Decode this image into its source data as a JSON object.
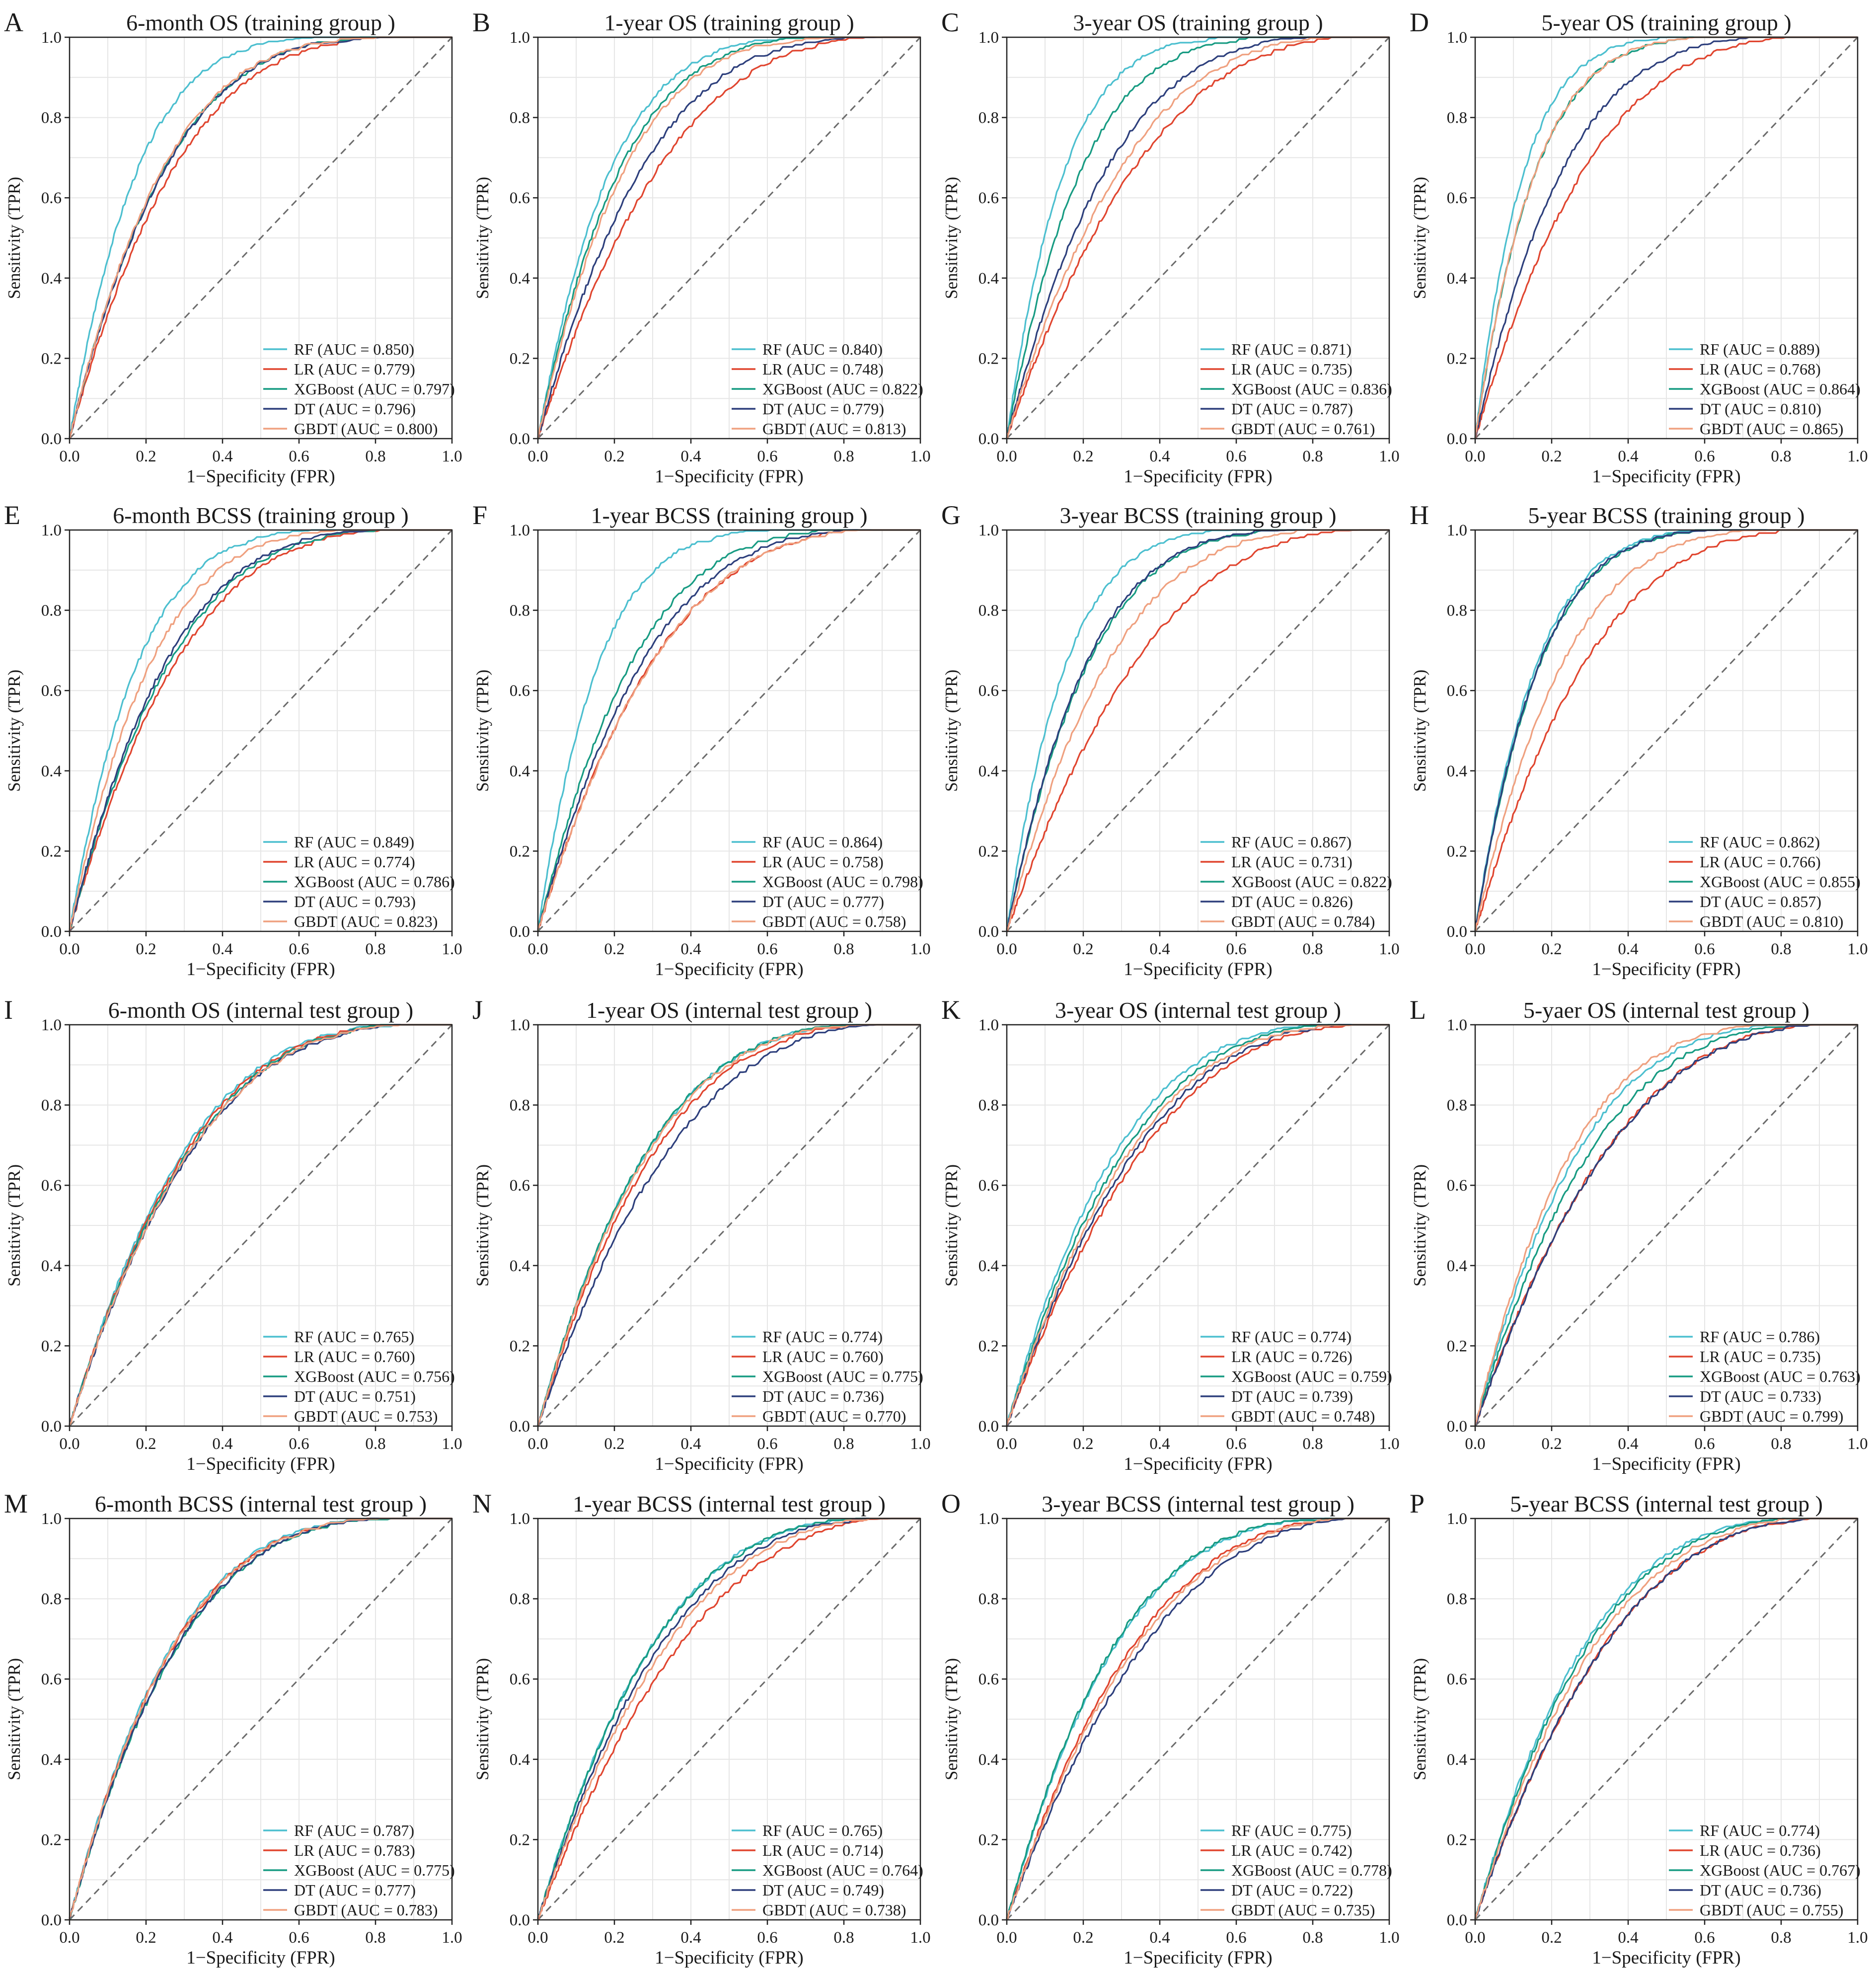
{
  "colors": {
    "RF": "#4cbfcf",
    "LR": "#e0452f",
    "XGBoost": "#179b82",
    "DT": "#2d3f7c",
    "GBDT": "#efa07f",
    "diagonal": "#6b6b6b",
    "grid": "#e6e6e6",
    "frame": "#222222"
  },
  "chart_data": [
    {
      "letter": "A",
      "type": "line",
      "title": "6-month OS (training group )",
      "xlabel": "1−Specificity (FPR)",
      "ylabel": "Sensitivity (TPR)",
      "xlim": [
        0,
        1
      ],
      "ylim": [
        0,
        1
      ],
      "ticks": [
        "0.0",
        "0.2",
        "0.4",
        "0.6",
        "0.8",
        "1.0"
      ],
      "grid": true,
      "legend": "bottom-right",
      "series": [
        {
          "name": "RF",
          "legend": "RF (AUC = 0.850)",
          "auc": 0.85
        },
        {
          "name": "LR",
          "legend": "LR (AUC = 0.779)",
          "auc": 0.779
        },
        {
          "name": "XGBoost",
          "legend": "XGBoost (AUC = 0.797)",
          "auc": 0.797
        },
        {
          "name": "DT",
          "legend": "DT (AUC = 0.796)",
          "auc": 0.796
        },
        {
          "name": "GBDT",
          "legend": "GBDT (AUC = 0.800)",
          "auc": 0.8
        }
      ]
    },
    {
      "letter": "B",
      "type": "line",
      "title": "1-year OS (training group )",
      "xlabel": "1−Specificity (FPR)",
      "ylabel": "Sensitivity (TPR)",
      "xlim": [
        0,
        1
      ],
      "ylim": [
        0,
        1
      ],
      "ticks": [
        "0.0",
        "0.2",
        "0.4",
        "0.6",
        "0.8",
        "1.0"
      ],
      "grid": true,
      "legend": "bottom-right",
      "series": [
        {
          "name": "RF",
          "legend": "RF (AUC = 0.840)",
          "auc": 0.84
        },
        {
          "name": "LR",
          "legend": "LR (AUC = 0.748)",
          "auc": 0.748
        },
        {
          "name": "XGBoost",
          "legend": "XGBoost (AUC = 0.822)",
          "auc": 0.822
        },
        {
          "name": "DT",
          "legend": "DT (AUC = 0.779)",
          "auc": 0.779
        },
        {
          "name": "GBDT",
          "legend": "GBDT (AUC = 0.813)",
          "auc": 0.813
        }
      ]
    },
    {
      "letter": "C",
      "type": "line",
      "title": "3-year OS (training group )",
      "xlabel": "1−Specificity (FPR)",
      "ylabel": "Sensitivity (TPR)",
      "xlim": [
        0,
        1
      ],
      "ylim": [
        0,
        1
      ],
      "ticks": [
        "0.0",
        "0.2",
        "0.4",
        "0.6",
        "0.8",
        "1.0"
      ],
      "grid": true,
      "legend": "bottom-right",
      "series": [
        {
          "name": "RF",
          "legend": "RF (AUC = 0.871)",
          "auc": 0.871
        },
        {
          "name": "LR",
          "legend": "LR (AUC = 0.735)",
          "auc": 0.735
        },
        {
          "name": "XGBoost",
          "legend": "XGBoost (AUC = 0.836)",
          "auc": 0.836
        },
        {
          "name": "DT",
          "legend": "DT (AUC = 0.787)",
          "auc": 0.787
        },
        {
          "name": "GBDT",
          "legend": "GBDT (AUC = 0.761)",
          "auc": 0.761
        }
      ]
    },
    {
      "letter": "D",
      "type": "line",
      "title": "5-year OS (training group )",
      "xlabel": "1−Specificity (FPR)",
      "ylabel": "Sensitivity (TPR)",
      "xlim": [
        0,
        1
      ],
      "ylim": [
        0,
        1
      ],
      "ticks": [
        "0.0",
        "0.2",
        "0.4",
        "0.6",
        "0.8",
        "1.0"
      ],
      "grid": true,
      "legend": "bottom-right",
      "series": [
        {
          "name": "RF",
          "legend": "RF (AUC = 0.889)",
          "auc": 0.889
        },
        {
          "name": "LR",
          "legend": "LR (AUC = 0.768)",
          "auc": 0.768
        },
        {
          "name": "XGBoost",
          "legend": "XGBoost (AUC = 0.864)",
          "auc": 0.864
        },
        {
          "name": "DT",
          "legend": "DT (AUC = 0.810)",
          "auc": 0.81
        },
        {
          "name": "GBDT",
          "legend": "GBDT (AUC = 0.865)",
          "auc": 0.865
        }
      ]
    },
    {
      "letter": "E",
      "type": "line",
      "title": "6-month BCSS (training group )",
      "xlabel": "1−Specificity (FPR)",
      "ylabel": "Sensitivity (TPR)",
      "xlim": [
        0,
        1
      ],
      "ylim": [
        0,
        1
      ],
      "ticks": [
        "0.0",
        "0.2",
        "0.4",
        "0.6",
        "0.8",
        "1.0"
      ],
      "grid": true,
      "legend": "bottom-right",
      "series": [
        {
          "name": "RF",
          "legend": "RF (AUC = 0.849)",
          "auc": 0.849
        },
        {
          "name": "LR",
          "legend": "LR (AUC = 0.774)",
          "auc": 0.774
        },
        {
          "name": "XGBoost",
          "legend": "XGBoost (AUC = 0.786)",
          "auc": 0.786
        },
        {
          "name": "DT",
          "legend": "DT (AUC = 0.793)",
          "auc": 0.793
        },
        {
          "name": "GBDT",
          "legend": "GBDT (AUC = 0.823)",
          "auc": 0.823
        }
      ]
    },
    {
      "letter": "F",
      "type": "line",
      "title": "1-year BCSS (training group )",
      "xlabel": "1−Specificity (FPR)",
      "ylabel": "Sensitivity (TPR)",
      "xlim": [
        0,
        1
      ],
      "ylim": [
        0,
        1
      ],
      "ticks": [
        "0.0",
        "0.2",
        "0.4",
        "0.6",
        "0.8",
        "1.0"
      ],
      "grid": true,
      "legend": "bottom-right",
      "series": [
        {
          "name": "RF",
          "legend": "RF (AUC = 0.864)",
          "auc": 0.864
        },
        {
          "name": "LR",
          "legend": "LR (AUC = 0.758)",
          "auc": 0.758
        },
        {
          "name": "XGBoost",
          "legend": "XGBoost (AUC = 0.798)",
          "auc": 0.798
        },
        {
          "name": "DT",
          "legend": "DT (AUC = 0.777)",
          "auc": 0.777
        },
        {
          "name": "GBDT",
          "legend": "GBDT (AUC = 0.758)",
          "auc": 0.758
        }
      ]
    },
    {
      "letter": "G",
      "type": "line",
      "title": "3-year BCSS (training group )",
      "xlabel": "1−Specificity (FPR)",
      "ylabel": "Sensitivity (TPR)",
      "xlim": [
        0,
        1
      ],
      "ylim": [
        0,
        1
      ],
      "ticks": [
        "0.0",
        "0.2",
        "0.4",
        "0.6",
        "0.8",
        "1.0"
      ],
      "grid": true,
      "legend": "bottom-right",
      "series": [
        {
          "name": "RF",
          "legend": "RF (AUC = 0.867)",
          "auc": 0.867
        },
        {
          "name": "LR",
          "legend": "LR (AUC = 0.731)",
          "auc": 0.731
        },
        {
          "name": "XGBoost",
          "legend": "XGBoost (AUC = 0.822)",
          "auc": 0.822
        },
        {
          "name": "DT",
          "legend": "DT (AUC = 0.826)",
          "auc": 0.826
        },
        {
          "name": "GBDT",
          "legend": "GBDT (AUC = 0.784)",
          "auc": 0.784
        }
      ]
    },
    {
      "letter": "H",
      "type": "line",
      "title": "5-year BCSS (training group )",
      "xlabel": "1−Specificity (FPR)",
      "ylabel": "Sensitivity (TPR)",
      "xlim": [
        0,
        1
      ],
      "ylim": [
        0,
        1
      ],
      "ticks": [
        "0.0",
        "0.2",
        "0.4",
        "0.6",
        "0.8",
        "1.0"
      ],
      "grid": true,
      "legend": "bottom-right",
      "series": [
        {
          "name": "RF",
          "legend": "RF (AUC = 0.862)",
          "auc": 0.862
        },
        {
          "name": "LR",
          "legend": "LR (AUC = 0.766)",
          "auc": 0.766
        },
        {
          "name": "XGBoost",
          "legend": "XGBoost (AUC = 0.855)",
          "auc": 0.855
        },
        {
          "name": "DT",
          "legend": "DT (AUC = 0.857)",
          "auc": 0.857
        },
        {
          "name": "GBDT",
          "legend": "GBDT (AUC = 0.810)",
          "auc": 0.81
        }
      ]
    },
    {
      "letter": "I",
      "type": "line",
      "title": "6-month OS (internal test group )",
      "xlabel": "1−Specificity (FPR)",
      "ylabel": "Sensitivity (TPR)",
      "xlim": [
        0,
        1
      ],
      "ylim": [
        0,
        1
      ],
      "ticks": [
        "0.0",
        "0.2",
        "0.4",
        "0.6",
        "0.8",
        "1.0"
      ],
      "grid": true,
      "legend": "bottom-right",
      "series": [
        {
          "name": "RF",
          "legend": "RF (AUC = 0.765)",
          "auc": 0.765
        },
        {
          "name": "LR",
          "legend": "LR (AUC = 0.760)",
          "auc": 0.76
        },
        {
          "name": "XGBoost",
          "legend": "XGBoost (AUC = 0.756)",
          "auc": 0.756
        },
        {
          "name": "DT",
          "legend": "DT (AUC = 0.751)",
          "auc": 0.751
        },
        {
          "name": "GBDT",
          "legend": "GBDT (AUC = 0.753)",
          "auc": 0.753
        }
      ]
    },
    {
      "letter": "J",
      "type": "line",
      "title": "1-year OS (internal test group )",
      "xlabel": "1−Specificity (FPR)",
      "ylabel": "Sensitivity (TPR)",
      "xlim": [
        0,
        1
      ],
      "ylim": [
        0,
        1
      ],
      "ticks": [
        "0.0",
        "0.2",
        "0.4",
        "0.6",
        "0.8",
        "1.0"
      ],
      "grid": true,
      "legend": "bottom-right",
      "series": [
        {
          "name": "RF",
          "legend": "RF (AUC = 0.774)",
          "auc": 0.774
        },
        {
          "name": "LR",
          "legend": "LR (AUC = 0.760)",
          "auc": 0.76
        },
        {
          "name": "XGBoost",
          "legend": "XGBoost (AUC = 0.775)",
          "auc": 0.775
        },
        {
          "name": "DT",
          "legend": "DT (AUC = 0.736)",
          "auc": 0.736
        },
        {
          "name": "GBDT",
          "legend": "GBDT (AUC = 0.770)",
          "auc": 0.77
        }
      ]
    },
    {
      "letter": "K",
      "type": "line",
      "title": "3-year OS (internal test group )",
      "xlabel": "1−Specificity (FPR)",
      "ylabel": "Sensitivity (TPR)",
      "xlim": [
        0,
        1
      ],
      "ylim": [
        0,
        1
      ],
      "ticks": [
        "0.0",
        "0.2",
        "0.4",
        "0.6",
        "0.8",
        "1.0"
      ],
      "grid": true,
      "legend": "bottom-right",
      "series": [
        {
          "name": "RF",
          "legend": "RF (AUC = 0.774)",
          "auc": 0.774
        },
        {
          "name": "LR",
          "legend": "LR (AUC = 0.726)",
          "auc": 0.726
        },
        {
          "name": "XGBoost",
          "legend": "XGBoost (AUC = 0.759)",
          "auc": 0.759
        },
        {
          "name": "DT",
          "legend": "DT (AUC = 0.739)",
          "auc": 0.739
        },
        {
          "name": "GBDT",
          "legend": "GBDT (AUC = 0.748)",
          "auc": 0.748
        }
      ]
    },
    {
      "letter": "L",
      "type": "line",
      "title": "5-yaer OS (internal test group )",
      "xlabel": "1−Specificity (FPR)",
      "ylabel": "Sensitivity (TPR)",
      "xlim": [
        0,
        1
      ],
      "ylim": [
        0,
        1
      ],
      "ticks": [
        "0.0",
        "0.2",
        "0.4",
        "0.6",
        "0.8",
        "1.0"
      ],
      "grid": true,
      "legend": "bottom-right",
      "series": [
        {
          "name": "RF",
          "legend": "RF (AUC = 0.786)",
          "auc": 0.786
        },
        {
          "name": "LR",
          "legend": "LR (AUC = 0.735)",
          "auc": 0.735
        },
        {
          "name": "XGBoost",
          "legend": "XGBoost (AUC = 0.763)",
          "auc": 0.763
        },
        {
          "name": "DT",
          "legend": "DT (AUC = 0.733)",
          "auc": 0.733
        },
        {
          "name": "GBDT",
          "legend": "GBDT (AUC = 0.799)",
          "auc": 0.799
        }
      ]
    },
    {
      "letter": "M",
      "type": "line",
      "title": "6-month BCSS (internal test group )",
      "xlabel": "1−Specificity (FPR)",
      "ylabel": "Sensitivity (TPR)",
      "xlim": [
        0,
        1
      ],
      "ylim": [
        0,
        1
      ],
      "ticks": [
        "0.0",
        "0.2",
        "0.4",
        "0.6",
        "0.8",
        "1.0"
      ],
      "grid": true,
      "legend": "bottom-right",
      "series": [
        {
          "name": "RF",
          "legend": "RF (AUC = 0.787)",
          "auc": 0.787
        },
        {
          "name": "LR",
          "legend": "LR (AUC = 0.783)",
          "auc": 0.783
        },
        {
          "name": "XGBoost",
          "legend": "XGBoost (AUC = 0.775)",
          "auc": 0.775
        },
        {
          "name": "DT",
          "legend": "DT (AUC = 0.777)",
          "auc": 0.777
        },
        {
          "name": "GBDT",
          "legend": "GBDT (AUC = 0.783)",
          "auc": 0.783
        }
      ]
    },
    {
      "letter": "N",
      "type": "line",
      "title": "1-year BCSS (internal test group )",
      "xlabel": "1−Specificity (FPR)",
      "ylabel": "Sensitivity (TPR)",
      "xlim": [
        0,
        1
      ],
      "ylim": [
        0,
        1
      ],
      "ticks": [
        "0.0",
        "0.2",
        "0.4",
        "0.6",
        "0.8",
        "1.0"
      ],
      "grid": true,
      "legend": "bottom-right",
      "series": [
        {
          "name": "RF",
          "legend": "RF (AUC = 0.765)",
          "auc": 0.765
        },
        {
          "name": "LR",
          "legend": "LR (AUC = 0.714)",
          "auc": 0.714
        },
        {
          "name": "XGBoost",
          "legend": "XGBoost (AUC = 0.764)",
          "auc": 0.764
        },
        {
          "name": "DT",
          "legend": "DT (AUC = 0.749)",
          "auc": 0.749
        },
        {
          "name": "GBDT",
          "legend": "GBDT (AUC = 0.738)",
          "auc": 0.738
        }
      ]
    },
    {
      "letter": "O",
      "type": "line",
      "title": "3-year BCSS (internal test group )",
      "xlabel": "1−Specificity (FPR)",
      "ylabel": "Sensitivity (TPR)",
      "xlim": [
        0,
        1
      ],
      "ylim": [
        0,
        1
      ],
      "ticks": [
        "0.0",
        "0.2",
        "0.4",
        "0.6",
        "0.8",
        "1.0"
      ],
      "grid": true,
      "legend": "bottom-right",
      "series": [
        {
          "name": "RF",
          "legend": "RF (AUC = 0.775)",
          "auc": 0.775
        },
        {
          "name": "LR",
          "legend": "LR (AUC = 0.742)",
          "auc": 0.742
        },
        {
          "name": "XGBoost",
          "legend": "XGBoost (AUC = 0.778)",
          "auc": 0.778
        },
        {
          "name": "DT",
          "legend": "DT (AUC = 0.722)",
          "auc": 0.722
        },
        {
          "name": "GBDT",
          "legend": "GBDT (AUC = 0.735)",
          "auc": 0.735
        }
      ]
    },
    {
      "letter": "P",
      "type": "line",
      "title": "5-year BCSS (internal test group )",
      "xlabel": "1−Specificity (FPR)",
      "ylabel": "Sensitivity (TPR)",
      "xlim": [
        0,
        1
      ],
      "ylim": [
        0,
        1
      ],
      "ticks": [
        "0.0",
        "0.2",
        "0.4",
        "0.6",
        "0.8",
        "1.0"
      ],
      "grid": true,
      "legend": "bottom-right",
      "series": [
        {
          "name": "RF",
          "legend": "RF (AUC = 0.774)",
          "auc": 0.774
        },
        {
          "name": "LR",
          "legend": "LR (AUC = 0.736)",
          "auc": 0.736
        },
        {
          "name": "XGBoost",
          "legend": "XGBoost (AUC = 0.767)",
          "auc": 0.767
        },
        {
          "name": "DT",
          "legend": "DT (AUC = 0.736)",
          "auc": 0.736
        },
        {
          "name": "GBDT",
          "legend": "GBDT (AUC = 0.755)",
          "auc": 0.755
        }
      ]
    }
  ]
}
